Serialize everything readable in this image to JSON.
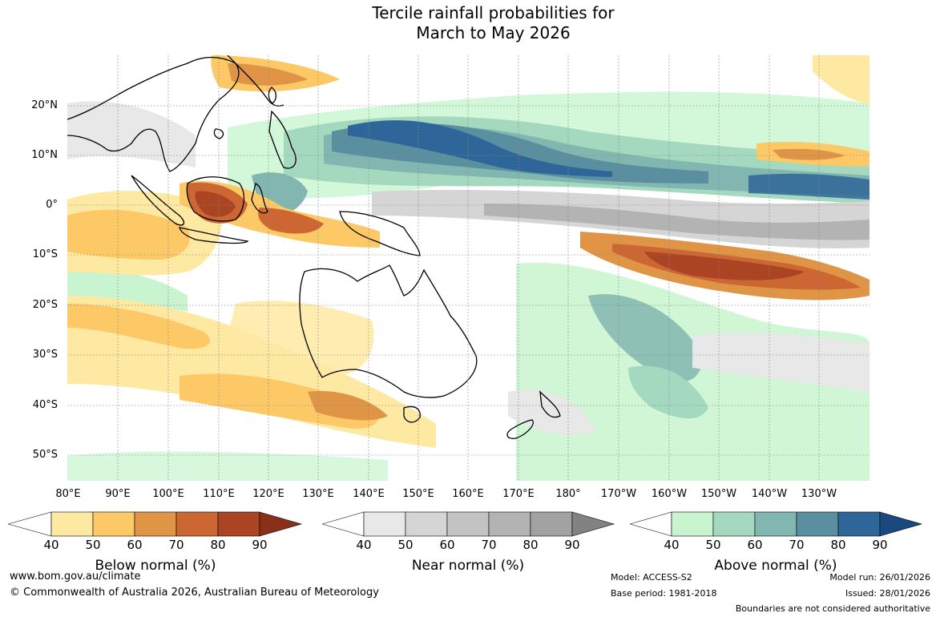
{
  "title": {
    "line1": "Tercile rainfall probabilities for",
    "line2": "March to May 2026"
  },
  "map": {
    "lat_labels": [
      "20°N",
      "10°N",
      "0°",
      "10°S",
      "20°S",
      "30°S",
      "40°S",
      "50°S"
    ],
    "lon_labels": [
      "80°E",
      "90°E",
      "100°E",
      "110°E",
      "120°E",
      "130°E",
      "140°E",
      "150°E",
      "160°E",
      "170°E",
      "180°",
      "170°W",
      "160°W",
      "150°W",
      "140°W",
      "130°W"
    ]
  },
  "legends": [
    {
      "title": "Below normal (%)",
      "ticks": [
        "40",
        "50",
        "60",
        "70",
        "80",
        "90"
      ],
      "colors": [
        "#ffffff",
        "#fee9a3",
        "#fdc866",
        "#e09446",
        "#cc6633",
        "#aa4422",
        "#8b3018"
      ]
    },
    {
      "title": "Near normal (%)",
      "ticks": [
        "40",
        "50",
        "60",
        "70",
        "80",
        "90"
      ],
      "colors": [
        "#ffffff",
        "#e8e8e8",
        "#d5d5d5",
        "#c3c3c3",
        "#b3b3b3",
        "#a2a2a2",
        "#828282"
      ]
    },
    {
      "title": "Above normal (%)",
      "ticks": [
        "40",
        "50",
        "60",
        "70",
        "80",
        "90"
      ],
      "colors": [
        "#ffffff",
        "#c8f5cf",
        "#a5d9bf",
        "#82b6b0",
        "#5a8fa0",
        "#2e6699",
        "#19497f"
      ]
    }
  ],
  "footer": {
    "url": "www.bom.gov.au/climate",
    "copyright": "© Commonwealth of Australia 2026, Australian Bureau of Meteorology",
    "model": "Model: ACCESS-S2",
    "base_period": "Base period: 1981-2018",
    "model_run": "Model run: 26/01/2026",
    "issued": "Issued: 28/01/2026",
    "disclaimer": "Boundaries are not considered authoritative"
  }
}
